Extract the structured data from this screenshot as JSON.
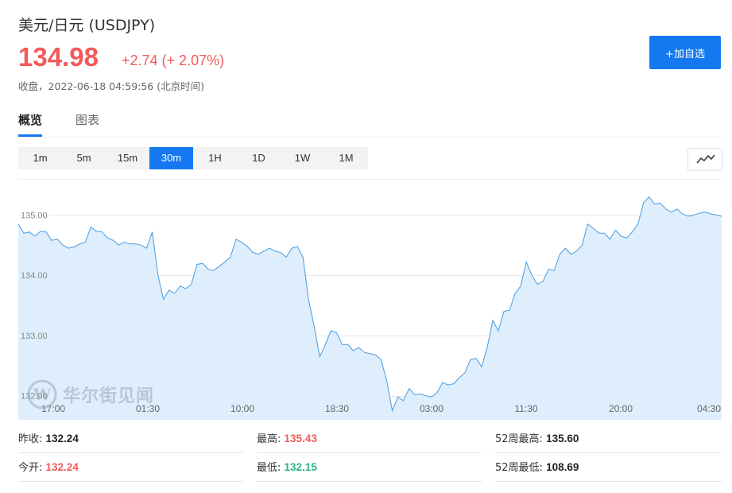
{
  "header": {
    "title": "美元/日元 (USDJPY)",
    "price": "134.98",
    "change": "+2.74 (+ 2.07%)",
    "close_info": "收盘，2022-06-18 04:59:56 (北京时间)",
    "add_button_label": "+加自选"
  },
  "tabs": [
    {
      "label": "概览",
      "active": true
    },
    {
      "label": "图表",
      "active": false
    }
  ],
  "intervals": [
    {
      "label": "1m"
    },
    {
      "label": "5m"
    },
    {
      "label": "15m"
    },
    {
      "label": "30m",
      "active": true
    },
    {
      "label": "1H"
    },
    {
      "label": "1D"
    },
    {
      "label": "1W"
    },
    {
      "label": "1M"
    }
  ],
  "watermark": {
    "text": "华尔街见闻"
  },
  "chart_data": {
    "type": "area",
    "y_tick_labels": [
      "135.00",
      "134.00",
      "133.00",
      "132.00"
    ],
    "y_ticks": [
      135.0,
      134.0,
      133.0,
      132.0
    ],
    "x_tick_labels": [
      "17:00",
      "01:30",
      "10:00",
      "18:30",
      "03:00",
      "11:30",
      "20:00",
      "04:30"
    ],
    "ylim": [
      131.6,
      135.6
    ],
    "grid": true,
    "line_color": "#4a9be0",
    "fill_color": "#deeefc",
    "values": [
      134.85,
      134.7,
      134.72,
      134.65,
      134.73,
      134.72,
      134.58,
      134.6,
      134.5,
      134.45,
      134.47,
      134.52,
      134.55,
      134.8,
      134.73,
      134.72,
      134.62,
      134.58,
      134.5,
      134.55,
      134.52,
      134.52,
      134.5,
      134.45,
      134.72,
      134.02,
      133.6,
      133.75,
      133.7,
      133.82,
      133.78,
      133.85,
      134.18,
      134.2,
      134.1,
      134.08,
      134.15,
      134.22,
      134.3,
      134.6,
      134.55,
      134.48,
      134.38,
      134.35,
      134.4,
      134.45,
      134.4,
      134.38,
      134.3,
      134.45,
      134.48,
      134.3,
      133.6,
      133.15,
      132.65,
      132.85,
      133.08,
      133.05,
      132.85,
      132.85,
      132.75,
      132.8,
      132.72,
      132.7,
      132.68,
      132.6,
      132.25,
      131.75,
      131.98,
      131.92,
      132.12,
      132.02,
      132.03,
      132.0,
      131.98,
      132.05,
      132.22,
      132.18,
      132.2,
      132.3,
      132.38,
      132.6,
      132.62,
      132.48,
      132.8,
      133.25,
      133.08,
      133.4,
      133.42,
      133.7,
      133.82,
      134.22,
      134.0,
      133.85,
      133.9,
      134.1,
      134.08,
      134.35,
      134.45,
      134.35,
      134.4,
      134.5,
      134.85,
      134.78,
      134.7,
      134.7,
      134.6,
      134.75,
      134.65,
      134.62,
      134.72,
      134.85,
      135.2,
      135.3,
      135.18,
      135.2,
      135.1,
      135.05,
      135.1,
      135.02,
      134.98,
      135.0,
      135.03,
      135.05,
      135.02,
      135.0,
      134.98
    ]
  },
  "stats": [
    {
      "label": "昨收:",
      "value": "132.24",
      "tone": "neutral"
    },
    {
      "label": "最高:",
      "value": "135.43",
      "tone": "red"
    },
    {
      "label": "52周最高:",
      "value": "135.60",
      "tone": "neutral"
    },
    {
      "label": "今开:",
      "value": "132.24",
      "tone": "red"
    },
    {
      "label": "最低:",
      "value": "132.15",
      "tone": "green"
    },
    {
      "label": "52周最低:",
      "value": "108.69",
      "tone": "neutral"
    }
  ]
}
